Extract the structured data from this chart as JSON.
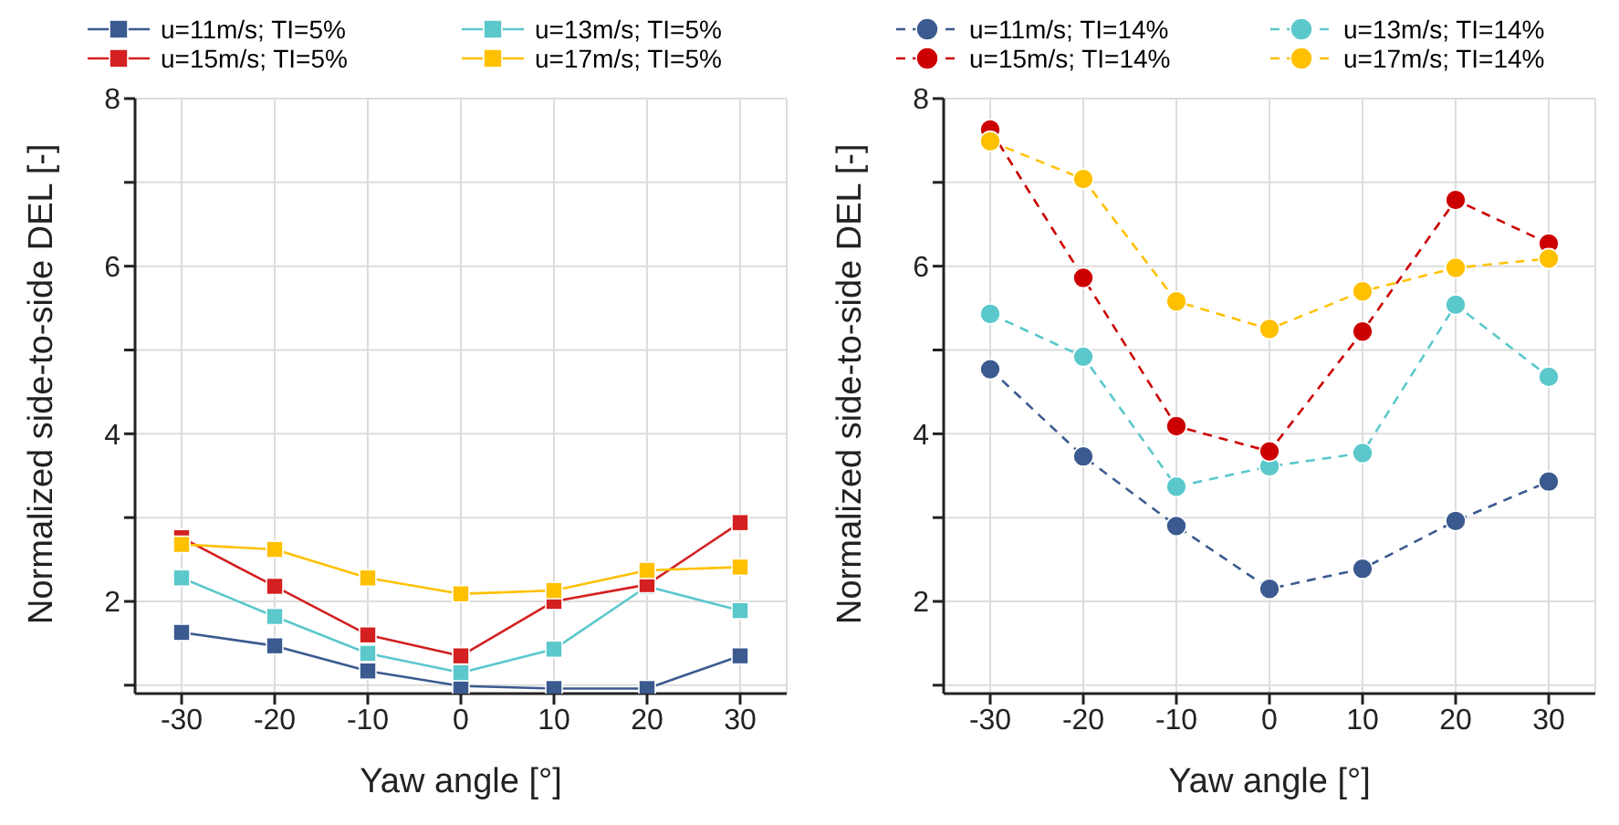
{
  "chart_data": [
    {
      "type": "line",
      "xlabel": "Yaw angle [°]",
      "ylabel": "Normalized side-to-side DEL [-]",
      "x": [
        -30,
        -20,
        -10,
        0,
        10,
        20,
        30
      ],
      "xlim": [
        -35,
        35
      ],
      "xticks": [
        -30,
        -20,
        -10,
        0,
        10,
        20,
        30
      ],
      "ylim": [
        0.9,
        8
      ],
      "yticks": [
        {
          "value": 1,
          "label": null
        },
        2,
        {
          "value": 3,
          "label": null
        },
        4,
        {
          "value": 5,
          "label": null
        },
        6,
        {
          "value": 7,
          "label": null
        },
        8
      ],
      "grid": true,
      "legend": "top",
      "marker": "square",
      "line_style": "solid",
      "series": [
        {
          "name": "u=11m/s; TI=5%",
          "color": "#3b5a8f",
          "values": [
            1.63,
            1.47,
            1.17,
            0.99,
            0.96,
            0.96,
            1.35
          ]
        },
        {
          "name": "u=13m/s; TI=5%",
          "color": "#5bc8cc",
          "values": [
            2.28,
            1.82,
            1.38,
            1.15,
            1.43,
            2.18,
            1.89
          ]
        },
        {
          "name": "u=15m/s; TI=5%",
          "color": "#d42020",
          "values": [
            2.76,
            2.18,
            1.6,
            1.35,
            2.0,
            2.2,
            2.94
          ]
        },
        {
          "name": "u=17m/s; TI=5%",
          "color": "#ffc000",
          "values": [
            2.68,
            2.62,
            2.28,
            2.09,
            2.13,
            2.37,
            2.41
          ]
        }
      ]
    },
    {
      "type": "line",
      "xlabel": "Yaw angle [°]",
      "ylabel": "Normalized side-to-side DEL [-]",
      "x": [
        -30,
        -20,
        -10,
        0,
        10,
        20,
        30
      ],
      "xlim": [
        -35,
        35
      ],
      "xticks": [
        -30,
        -20,
        -10,
        0,
        10,
        20,
        30
      ],
      "ylim": [
        0.9,
        8
      ],
      "yticks": [
        {
          "value": 1,
          "label": null
        },
        2,
        {
          "value": 3,
          "label": null
        },
        4,
        {
          "value": 5,
          "label": null
        },
        6,
        {
          "value": 7,
          "label": null
        },
        8
      ],
      "grid": true,
      "legend": "top",
      "marker": "circle",
      "line_style": "dashed",
      "series": [
        {
          "name": "u=11m/s; TI=14%",
          "color": "#3b5a8f",
          "values": [
            4.77,
            3.73,
            2.9,
            2.15,
            2.39,
            2.96,
            3.43
          ]
        },
        {
          "name": "u=13m/s; TI=14%",
          "color": "#5bc8cc",
          "values": [
            5.43,
            4.92,
            3.37,
            3.61,
            3.77,
            5.54,
            4.68
          ]
        },
        {
          "name": "u=15m/s; TI=14%",
          "color": "#cc0000",
          "values": [
            7.63,
            5.86,
            4.09,
            3.79,
            5.22,
            6.79,
            6.27
          ]
        },
        {
          "name": "u=17m/s; TI=14%",
          "color": "#ffc000",
          "values": [
            7.49,
            7.04,
            5.58,
            5.25,
            5.7,
            5.98,
            6.09
          ]
        }
      ]
    }
  ]
}
